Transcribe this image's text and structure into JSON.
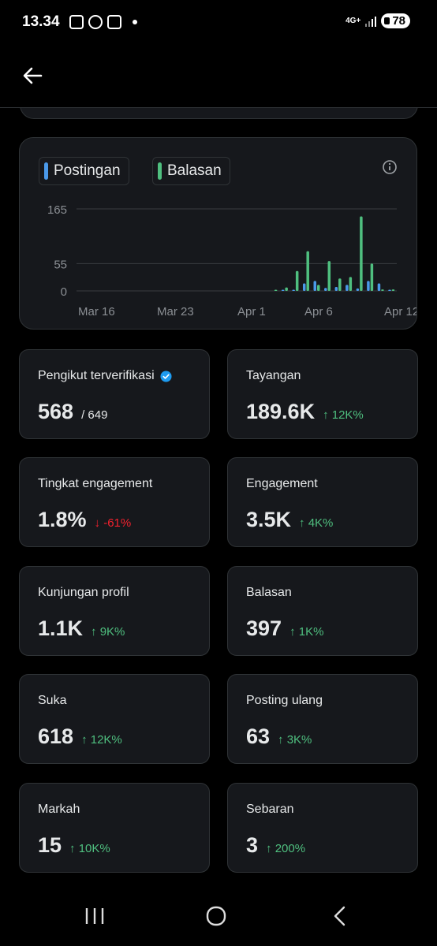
{
  "status_bar": {
    "time": "13.34",
    "network": "4G+",
    "battery": "78"
  },
  "chart": {
    "legend": [
      {
        "label": "Postingan",
        "color": "#4a99e9"
      },
      {
        "label": "Balasan",
        "color": "#4fbf7f"
      }
    ],
    "colors": {
      "accent_blue": "#4a99e9",
      "accent_green": "#4fbf7f"
    }
  },
  "chart_data": {
    "type": "bar",
    "y_ticks": [
      0,
      55,
      165
    ],
    "ylim": [
      0,
      165
    ],
    "x_tick_labels": [
      "Mar 16",
      "Mar 23",
      "Apr 1",
      "Apr 6",
      "Apr 12"
    ],
    "categories": [
      "Mar 14",
      "Mar 15",
      "Mar 16",
      "Mar 17",
      "Mar 18",
      "Mar 19",
      "Mar 20",
      "Mar 21",
      "Mar 22",
      "Mar 23",
      "Mar 24",
      "Mar 25",
      "Mar 26",
      "Mar 27",
      "Mar 28",
      "Mar 29",
      "Mar 30",
      "Mar 31",
      "Apr 1",
      "Apr 2",
      "Apr 3",
      "Apr 4",
      "Apr 5",
      "Apr 6",
      "Apr 7",
      "Apr 8",
      "Apr 9",
      "Apr 10",
      "Apr 11",
      "Apr 12"
    ],
    "series": [
      {
        "name": "Postingan",
        "values": [
          0,
          0,
          0,
          0,
          0,
          0,
          0,
          0,
          0,
          0,
          0,
          0,
          0,
          0,
          0,
          0,
          0,
          0,
          0,
          1,
          2,
          15,
          20,
          6,
          8,
          12,
          5,
          20,
          15,
          2
        ]
      },
      {
        "name": "Balasan",
        "values": [
          0,
          0,
          0,
          0,
          0,
          0,
          0,
          0,
          0,
          0,
          0,
          0,
          0,
          0,
          0,
          0,
          0,
          0,
          1,
          7,
          40,
          80,
          12,
          60,
          25,
          28,
          150,
          55,
          3,
          3
        ]
      }
    ]
  },
  "metrics": [
    {
      "label": "Pengikut terverifikasi",
      "value": "568",
      "sub": "/ 649",
      "change": ""
    },
    {
      "label": "Tayangan",
      "value": "189.6K",
      "change": "↑ 12K%",
      "direction": "up"
    },
    {
      "label": "Tingkat engagement",
      "value": "1.8%",
      "change": "↓ -61%",
      "direction": "down"
    },
    {
      "label": "Engagement",
      "value": "3.5K",
      "change": "↑ 4K%",
      "direction": "up"
    },
    {
      "label": "Kunjungan profil",
      "value": "1.1K",
      "change": "↑ 9K%",
      "direction": "up"
    },
    {
      "label": "Balasan",
      "value": "397",
      "change": "↑ 1K%",
      "direction": "up"
    },
    {
      "label": "Suka",
      "value": "618",
      "change": "↑ 12K%",
      "direction": "up"
    },
    {
      "label": "Posting ulang",
      "value": "63",
      "change": "↑ 3K%",
      "direction": "up"
    },
    {
      "label": "Markah",
      "value": "15",
      "change": "↑ 10K%",
      "direction": "up"
    },
    {
      "label": "Sebaran",
      "value": "3",
      "change": "↑ 200%",
      "direction": "up"
    }
  ],
  "icons": {
    "back": "arrow-left-icon",
    "info": "info-icon",
    "verified": "verified-badge-icon",
    "nav_recents": "recents-icon",
    "nav_home": "home-icon",
    "nav_back": "back-chevron-icon"
  }
}
